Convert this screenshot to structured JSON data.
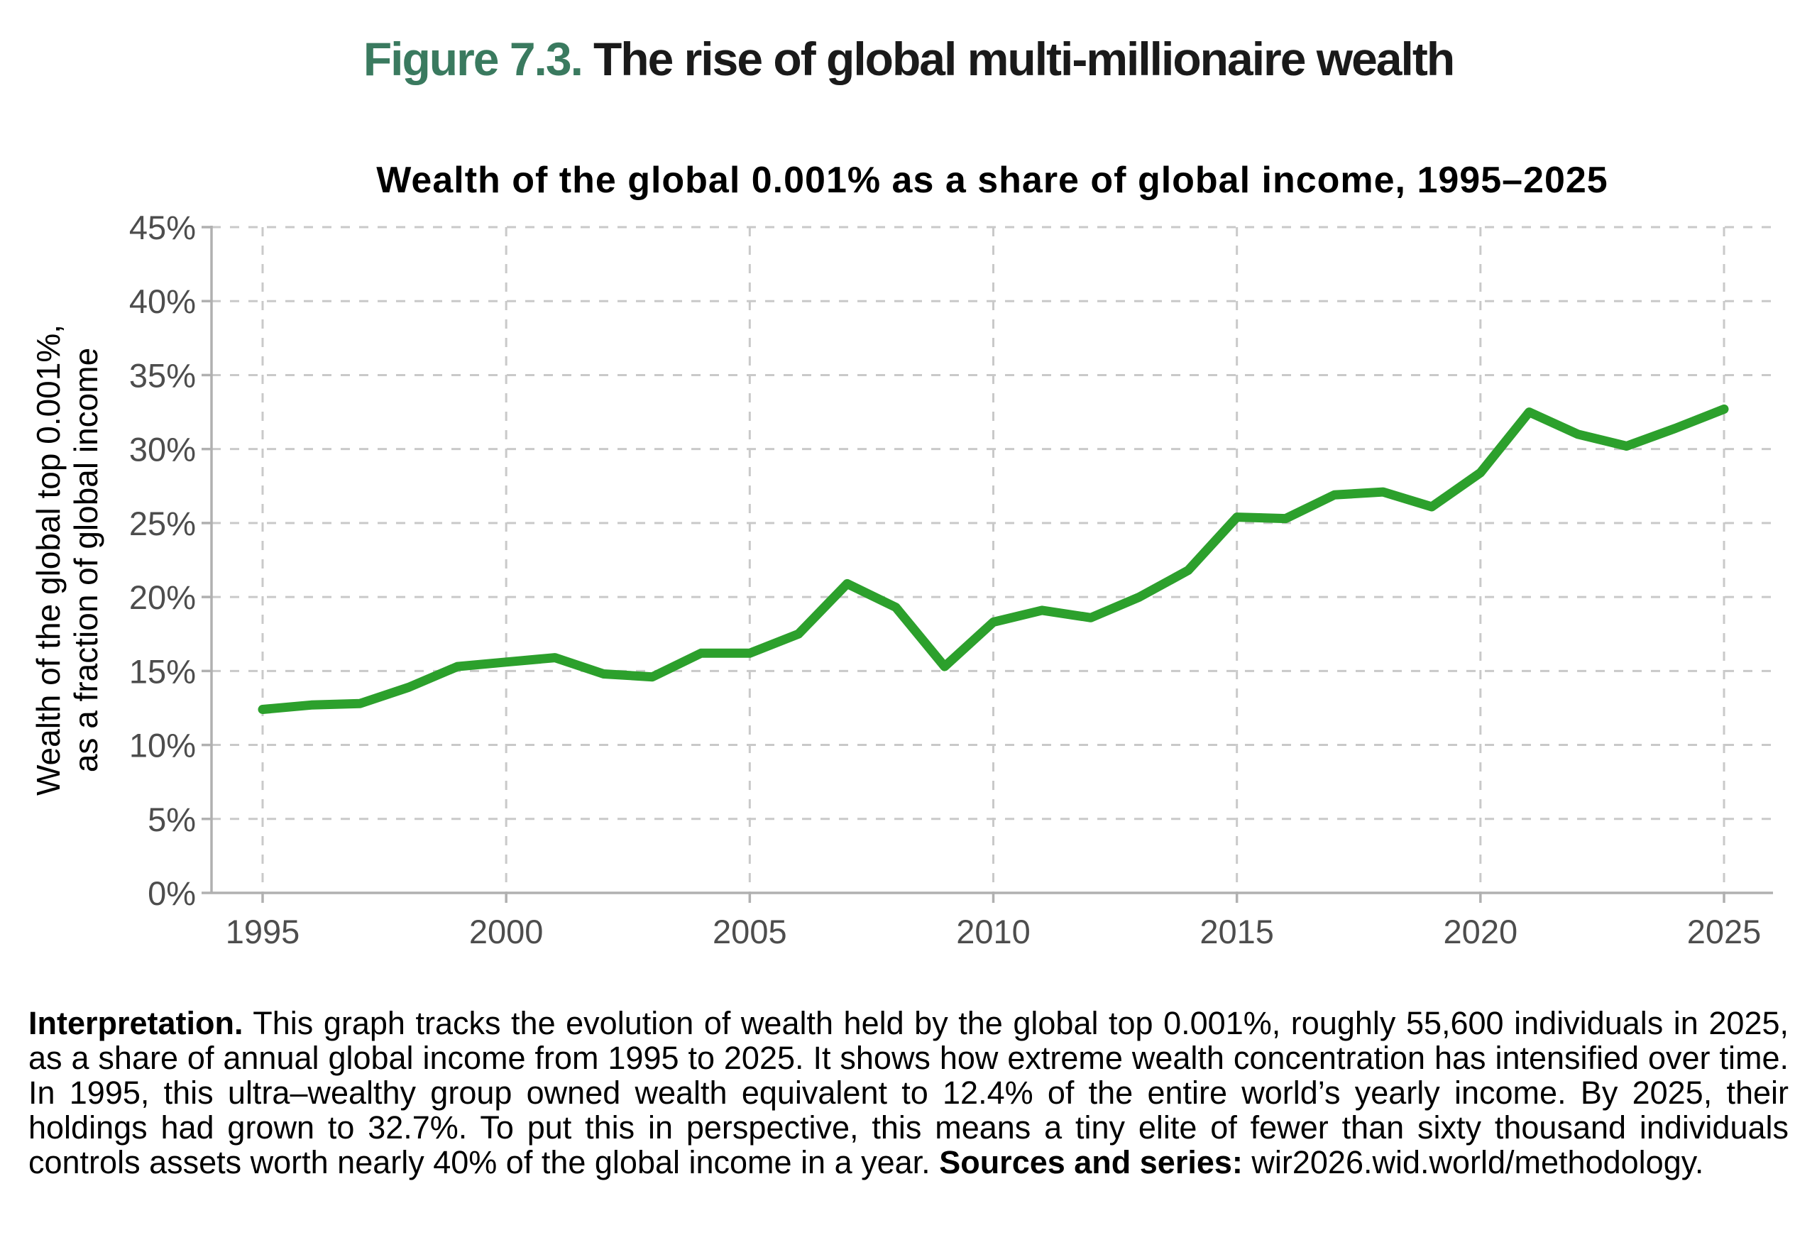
{
  "figure": {
    "label": "Figure 7.3.",
    "title": "The rise of global multi-millionaire wealth",
    "label_color": "#3a7a5f"
  },
  "chart_data": {
    "type": "line",
    "title": "Wealth of the global 0.001% as a share of global income, 1995–2025",
    "ylabel_lines": [
      "Wealth of the global top 0.001%,",
      "as a fraction of global income"
    ],
    "x": [
      1995,
      1996,
      1997,
      1998,
      1999,
      2000,
      2001,
      2002,
      2003,
      2004,
      2005,
      2006,
      2007,
      2008,
      2009,
      2010,
      2011,
      2012,
      2013,
      2014,
      2015,
      2016,
      2017,
      2018,
      2019,
      2020,
      2021,
      2022,
      2023,
      2024,
      2025
    ],
    "series": [
      {
        "name": "Wealth of the global top 0.001% as a fraction of global income",
        "values": [
          12.4,
          12.7,
          12.8,
          13.9,
          15.3,
          15.6,
          15.9,
          14.8,
          14.6,
          16.2,
          16.2,
          17.5,
          20.9,
          19.3,
          15.3,
          18.3,
          19.1,
          18.6,
          20.0,
          21.8,
          25.4,
          25.3,
          26.9,
          27.1,
          26.1,
          28.4,
          32.5,
          31.0,
          30.2,
          31.4,
          32.7
        ]
      }
    ],
    "xlim": [
      1995,
      2025
    ],
    "ylim": [
      0,
      45
    ],
    "xticks": {
      "values": [
        1995,
        2000,
        2005,
        2010,
        2015,
        2020,
        2025
      ],
      "labels": [
        "1995",
        "2000",
        "2005",
        "2010",
        "2015",
        "2020",
        "2025"
      ]
    },
    "yticks": {
      "values": [
        0,
        5,
        10,
        15,
        20,
        25,
        30,
        35,
        40,
        45
      ],
      "labels": [
        "0%",
        "5%",
        "10%",
        "15%",
        "20%",
        "25%",
        "30%",
        "35%",
        "40%",
        "45%"
      ]
    },
    "grid": "dashed",
    "legend": "none",
    "colors": {
      "line": "#2ca02c",
      "grid": "#c9c9c9",
      "axis": "#b0b0b0",
      "tick_label": "#4d4d4d",
      "axis_title": "#000000"
    }
  },
  "note": {
    "bold_lead": "Interpretation.",
    "body": " This graph tracks the evolution of wealth held by the global top 0.001%, roughly 55,600 individuals in 2025, as a share of annual global income from 1995 to 2025. It shows how extreme wealth concentration has intensified over time. In 1995, this ultra–wealthy group owned wealth equivalent to 12.4% of the entire world’s yearly income. By 2025, their holdings had grown to 32.7%. To put this in perspective, this means a tiny elite of fewer than sixty thousand individuals controls assets worth nearly 40% of the global income in a year. ",
    "sources_bold": "Sources and series:",
    "sources_text": " wir2026.wid.world/methodology."
  }
}
